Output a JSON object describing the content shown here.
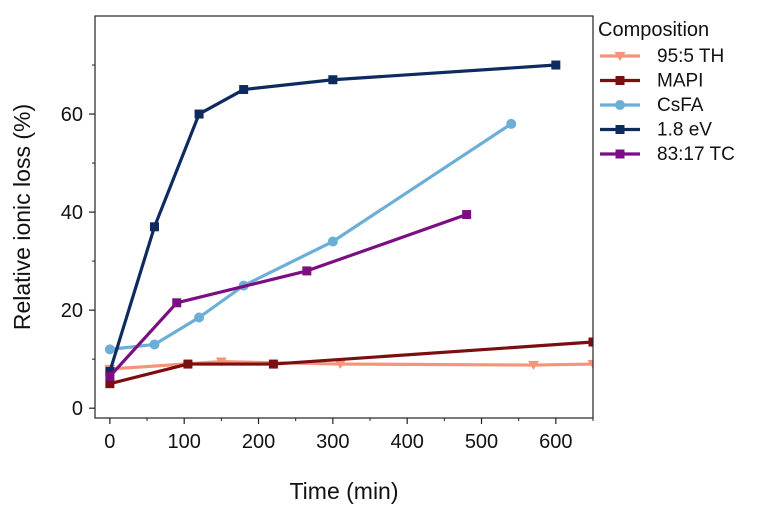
{
  "chart_data": {
    "type": "line",
    "title": "",
    "xlabel": "Time (min)",
    "ylabel": "Relative ionic loss (%)",
    "xlim": [
      -20,
      650
    ],
    "ylim": [
      -2,
      80
    ],
    "xticks": [
      0,
      100,
      200,
      300,
      400,
      500,
      600
    ],
    "yticks": [
      0,
      20,
      40,
      60
    ],
    "xtick_labels": [
      "0",
      "100",
      "200",
      "300",
      "400",
      "500",
      "600"
    ],
    "ytick_labels": [
      "0",
      "20",
      "40",
      "60"
    ],
    "grid": false,
    "legend": {
      "title": "Composition",
      "placement": "outside-right"
    },
    "series": [
      {
        "name": "95:5 TH",
        "color": "#F4957A",
        "marker": "triangle-down",
        "x": [
          0,
          150,
          310,
          570,
          650
        ],
        "y": [
          8,
          9.5,
          9,
          8.8,
          9
        ]
      },
      {
        "name": "MAPI",
        "color": "#7A0E10",
        "marker": "square",
        "x": [
          0,
          105,
          220,
          650
        ],
        "y": [
          5,
          9,
          9,
          13.5
        ]
      },
      {
        "name": "CsFA",
        "color": "#6BAED6",
        "marker": "circle",
        "x": [
          0,
          60,
          120,
          180,
          300,
          540
        ],
        "y": [
          12,
          13,
          18.5,
          25,
          34,
          58
        ]
      },
      {
        "name": "1.8 eV",
        "color": "#0D2B5E",
        "marker": "square",
        "x": [
          0,
          60,
          120,
          180,
          300,
          600
        ],
        "y": [
          7.5,
          37,
          60,
          65,
          67,
          70
        ]
      },
      {
        "name": "83:17 TC",
        "color": "#7B0E83",
        "marker": "square",
        "x": [
          0,
          90,
          265,
          480
        ],
        "y": [
          6.5,
          21.5,
          28,
          39.5
        ]
      }
    ]
  }
}
